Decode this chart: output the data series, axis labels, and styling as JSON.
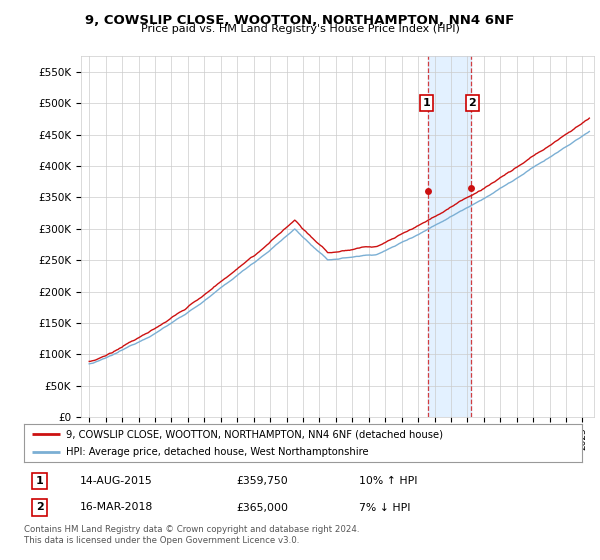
{
  "title": "9, COWSLIP CLOSE, WOOTTON, NORTHAMPTON, NN4 6NF",
  "subtitle": "Price paid vs. HM Land Registry's House Price Index (HPI)",
  "ylim": [
    0,
    575000
  ],
  "yticks": [
    0,
    50000,
    100000,
    150000,
    200000,
    250000,
    300000,
    350000,
    400000,
    450000,
    500000,
    550000
  ],
  "ytick_labels": [
    "£0",
    "£50K",
    "£100K",
    "£150K",
    "£200K",
    "£250K",
    "£300K",
    "£350K",
    "£400K",
    "£450K",
    "£500K",
    "£550K"
  ],
  "hpi_color": "#7bafd4",
  "price_color": "#cc1111",
  "sale1_date_num": 2015.62,
  "sale1_price": 359750,
  "sale2_date_num": 2018.21,
  "sale2_price": 365000,
  "sale1_text": "14-AUG-2015",
  "sale1_price_text": "£359,750",
  "sale1_hpi_text": "10% ↑ HPI",
  "sale2_text": "16-MAR-2018",
  "sale2_price_text": "£365,000",
  "sale2_hpi_text": "7% ↓ HPI",
  "legend_line1": "9, COWSLIP CLOSE, WOOTTON, NORTHAMPTON, NN4 6NF (detached house)",
  "legend_line2": "HPI: Average price, detached house, West Northamptonshire",
  "footnote": "Contains HM Land Registry data © Crown copyright and database right 2024.\nThis data is licensed under the Open Government Licence v3.0.",
  "bg_color": "#ffffff",
  "grid_color": "#cccccc",
  "highlight_bg": "#ddeeff"
}
